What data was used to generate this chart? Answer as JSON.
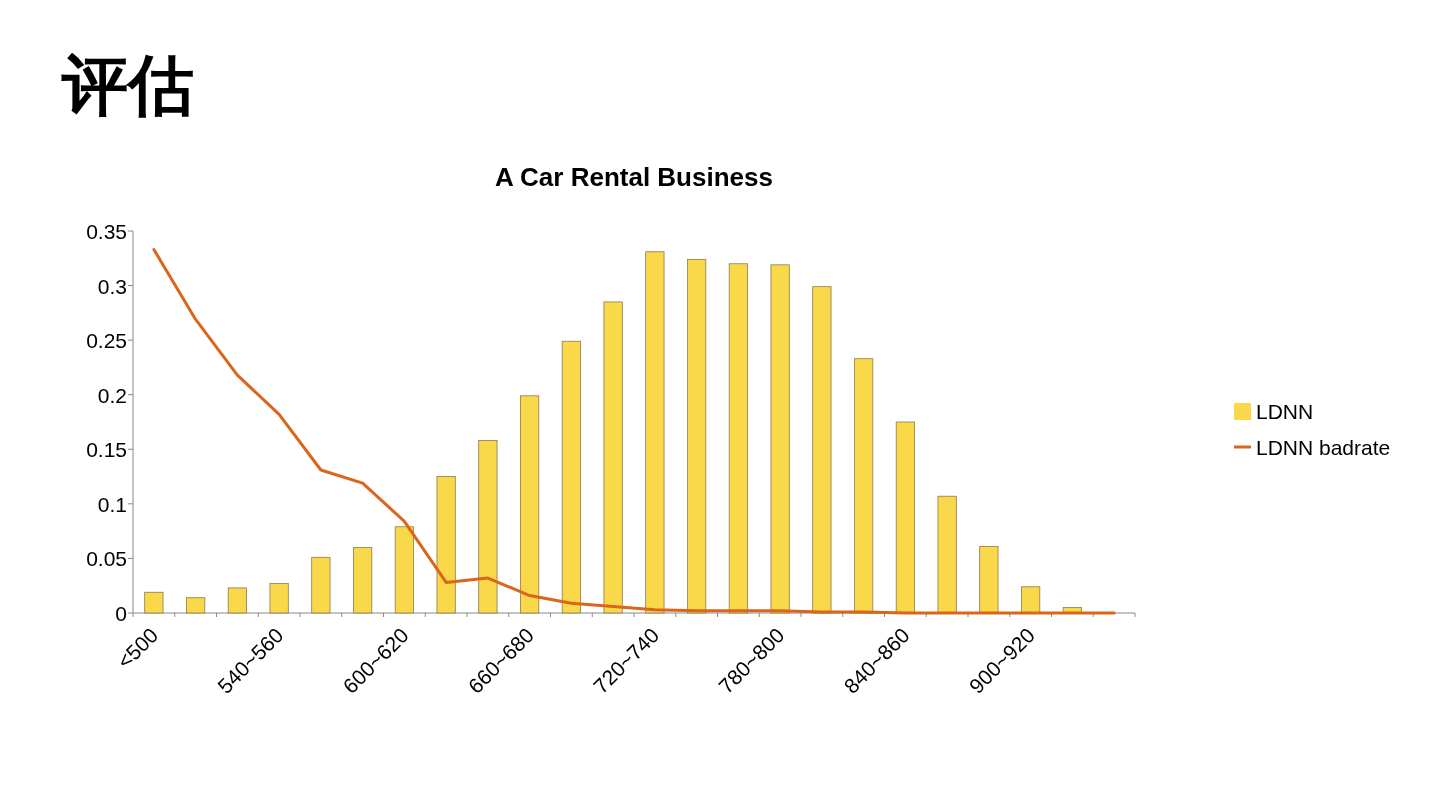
{
  "chart_data": {
    "type": "bar",
    "title": "评估",
    "subtitle": "A Car Rental Business",
    "categories": [
      "<500",
      null,
      null,
      "540~560",
      null,
      null,
      "600~620",
      null,
      null,
      "660~680",
      null,
      null,
      "720~740",
      null,
      null,
      "780~800",
      null,
      null,
      "840~860",
      null,
      null,
      "900~920",
      null,
      null
    ],
    "series": [
      {
        "name": "LDNN",
        "color": "#f9d84a",
        "values": [
          0.019,
          0.014,
          0.023,
          0.027,
          0.051,
          0.06,
          0.079,
          0.125,
          0.158,
          0.199,
          0.249,
          0.285,
          0.331,
          0.324,
          0.32,
          0.319,
          0.299,
          0.233,
          0.175,
          0.107,
          0.061,
          0.024,
          0.005,
          0
        ]
      },
      {
        "name": "LDNN badrate",
        "type": "line",
        "color": "#d9661a",
        "values": [
          0.333,
          0.269,
          0.218,
          0.182,
          0.131,
          0.119,
          0.084,
          0.028,
          0.032,
          0.016,
          0.009,
          0.006,
          0.003,
          0.002,
          0.002,
          0.002,
          0.001,
          0.001,
          0,
          0,
          0,
          0,
          0,
          0
        ]
      }
    ],
    "ylim": [
      0,
      0.35
    ],
    "yticks": [
      0,
      0.05,
      0.1,
      0.15,
      0.2,
      0.25,
      0.3,
      0.35
    ],
    "legend": "right",
    "grid": false,
    "marker": "none",
    "line_style": "solid"
  }
}
